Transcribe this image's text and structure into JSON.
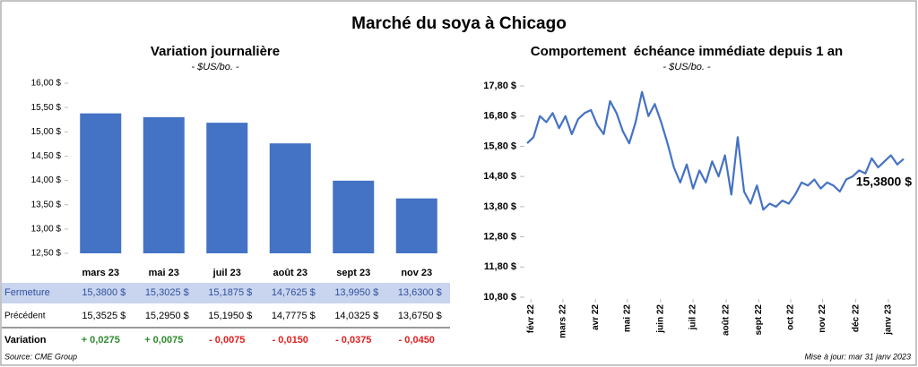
{
  "title": "Marché du soya à Chicago",
  "source": "Source: CME Group",
  "updated": "Mise à jour: mar 31 janv 2023",
  "chart_data": [
    {
      "type": "bar",
      "title": "Variation journalière",
      "subtitle": "- $US/bo. -",
      "categories": [
        "mars 23",
        "mai 23",
        "juil 23",
        "août 23",
        "sept 23",
        "nov 23"
      ],
      "series": [
        {
          "name": "Fermeture",
          "color": "#4472c4",
          "values": [
            15.38,
            15.3025,
            15.1875,
            14.7625,
            13.995,
            13.63
          ],
          "value_labels": [
            "15,3800 $",
            "15,3025 $",
            "15,1875 $",
            "14,7625 $",
            "13,9950 $",
            "13,6300 $"
          ]
        }
      ],
      "ylim": [
        12.5,
        16.0
      ],
      "yticks": [
        {
          "value": 12.5,
          "label": "12,50 $"
        },
        {
          "value": 13.0,
          "label": "13,00 $"
        },
        {
          "value": 13.5,
          "label": "13,50 $"
        },
        {
          "value": 14.0,
          "label": "14,00 $"
        },
        {
          "value": 14.5,
          "label": "14,50 $"
        },
        {
          "value": 15.0,
          "label": "15,00 $"
        },
        {
          "value": 15.5,
          "label": "15,50 $"
        },
        {
          "value": 16.0,
          "label": "16,00 $"
        }
      ],
      "table": {
        "rows": [
          {
            "name": "Précédent",
            "cells": [
              "15,3525 $",
              "15,2950 $",
              "15,1950 $",
              "14,7775 $",
              "14,0325 $",
              "13,6750 $"
            ]
          },
          {
            "name": "Variation",
            "cells": [
              "+ 0,0275",
              "+ 0,0075",
              "- 0,0075",
              "- 0,0150",
              "- 0,0375",
              "- 0,0450"
            ],
            "positive_color": "#2e8b2e",
            "negative_color": "#e02020"
          }
        ]
      }
    },
    {
      "type": "line",
      "title": "Comportement  échéance immédiate depuis 1 an",
      "subtitle": "- $US/bo. -",
      "series": [
        {
          "name": "Soya",
          "color": "#4472c4",
          "values": [
            15.9,
            16.1,
            16.8,
            16.6,
            16.9,
            16.4,
            16.8,
            16.2,
            16.7,
            16.9,
            17.0,
            16.5,
            16.2,
            17.3,
            16.9,
            16.3,
            15.9,
            16.6,
            17.6,
            16.8,
            17.2,
            16.6,
            15.9,
            15.1,
            14.6,
            15.2,
            14.4,
            15.0,
            14.6,
            15.3,
            14.8,
            15.5,
            14.2,
            16.1,
            14.3,
            13.9,
            14.5,
            13.7,
            13.9,
            13.8,
            14.0,
            13.9,
            14.2,
            14.6,
            14.5,
            14.7,
            14.4,
            14.6,
            14.5,
            14.3,
            14.7,
            14.8,
            15.0,
            14.9,
            15.4,
            15.1,
            15.3,
            15.5,
            15.2,
            15.38
          ]
        }
      ],
      "annotation": "15,3800 $",
      "xlim": [
        0,
        59
      ],
      "xticks": [
        {
          "value": 0.6,
          "label": "févr 22"
        },
        {
          "value": 5.6,
          "label": "mars 22"
        },
        {
          "value": 10.7,
          "label": "avr 22"
        },
        {
          "value": 15.7,
          "label": "mai 22"
        },
        {
          "value": 20.9,
          "label": "juin 22"
        },
        {
          "value": 26,
          "label": "juil 22"
        },
        {
          "value": 31.2,
          "label": "août 22"
        },
        {
          "value": 36.3,
          "label": "sept 22"
        },
        {
          "value": 41.3,
          "label": "oct 22"
        },
        {
          "value": 46.3,
          "label": "nov 22"
        },
        {
          "value": 51.5,
          "label": "déc 22"
        },
        {
          "value": 56.6,
          "label": "janv 23"
        }
      ],
      "ylim": [
        10.8,
        17.8
      ],
      "yticks": [
        {
          "value": 10.8,
          "label": "10,80 $"
        },
        {
          "value": 11.8,
          "label": "11,80 $"
        },
        {
          "value": 12.8,
          "label": "12,80 $"
        },
        {
          "value": 13.8,
          "label": "13,80 $"
        },
        {
          "value": 14.8,
          "label": "14,80 $"
        },
        {
          "value": 15.8,
          "label": "15,80 $"
        },
        {
          "value": 16.8,
          "label": "16,80 $"
        },
        {
          "value": 17.8,
          "label": "17,80 $"
        }
      ]
    }
  ]
}
